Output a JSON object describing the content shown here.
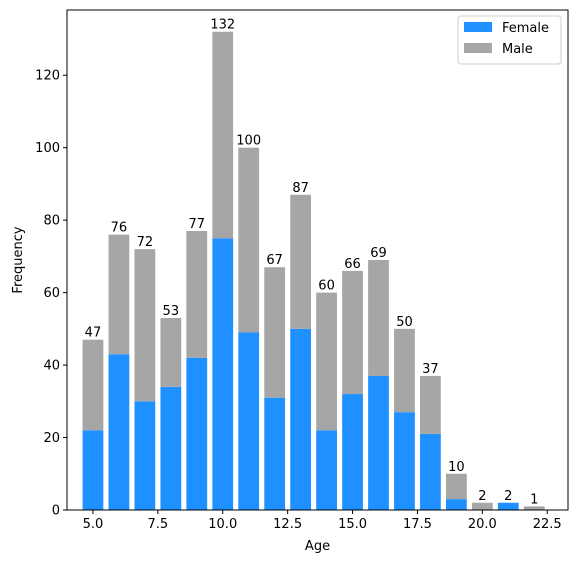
{
  "chart_data": {
    "type": "bar",
    "stacked": true,
    "title": "",
    "xlabel": "Age",
    "ylabel": "Frequency",
    "xlim": [
      4.0,
      23.3
    ],
    "ylim": [
      0,
      138
    ],
    "x_ticks": [
      5.0,
      7.5,
      10.0,
      12.5,
      15.0,
      17.5,
      20.0,
      22.5
    ],
    "x_tick_labels": [
      "5.0",
      "7.5",
      "10.0",
      "12.5",
      "15.0",
      "17.5",
      "20.0",
      "22.5"
    ],
    "y_ticks": [
      0,
      20,
      40,
      60,
      80,
      100,
      120
    ],
    "y_tick_labels": [
      "0",
      "20",
      "40",
      "60",
      "80",
      "100",
      "120"
    ],
    "grid": false,
    "legend_position": "top-right",
    "categories": [
      5,
      6,
      7,
      8,
      9,
      10,
      11,
      12,
      13,
      14,
      15,
      16,
      17,
      18,
      19,
      20,
      21,
      22
    ],
    "series": [
      {
        "name": "Female",
        "color": "#1e90ff",
        "values": [
          22,
          43,
          30,
          34,
          42,
          75,
          49,
          31,
          50,
          22,
          32,
          37,
          27,
          21,
          3,
          0,
          2,
          0
        ]
      },
      {
        "name": "Male",
        "color": "#a6a6a6",
        "values": [
          25,
          33,
          42,
          19,
          35,
          57,
          51,
          36,
          37,
          38,
          34,
          32,
          23,
          16,
          7,
          2,
          0,
          1
        ]
      }
    ],
    "totals": [
      47,
      76,
      72,
      53,
      77,
      132,
      100,
      67,
      87,
      60,
      66,
      69,
      50,
      37,
      10,
      2,
      2,
      1
    ],
    "total_labels": [
      "47",
      "76",
      "72",
      "53",
      "77",
      "132",
      "100",
      "67",
      "87",
      "60",
      "66",
      "69",
      "50",
      "37",
      "10",
      "2",
      "2",
      "1"
    ]
  }
}
